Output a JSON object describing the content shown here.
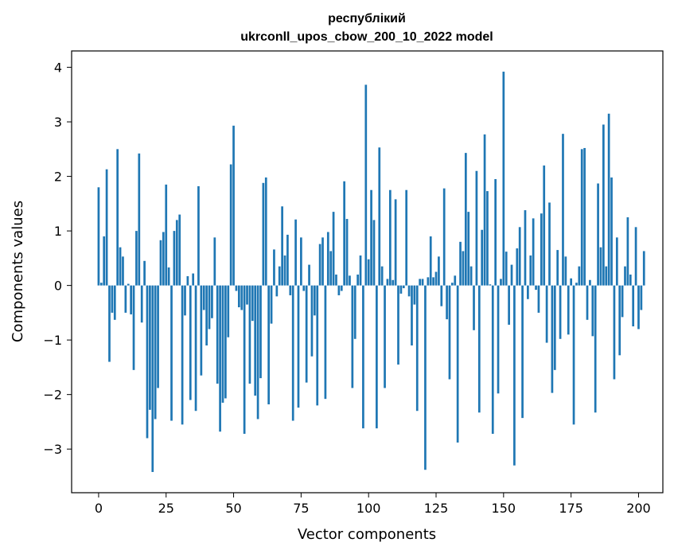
{
  "chart_data": {
    "type": "bar",
    "title_lines": [
      "республікий",
      "ukrconll_upos_cbow_200_10_2022 model"
    ],
    "xlabel": "Vector components",
    "ylabel": "Components values",
    "xlim": [
      -10,
      209
    ],
    "ylim": [
      -3.8,
      4.3
    ],
    "xticks": [
      0,
      25,
      50,
      75,
      100,
      125,
      150,
      175,
      200
    ],
    "yticks": [
      -3,
      -2,
      -1,
      0,
      1,
      2,
      3,
      4
    ],
    "grid": false,
    "bar_color": "#1f77b4",
    "values": [
      1.8,
      0.05,
      0.9,
      2.13,
      -1.4,
      -0.5,
      -0.63,
      2.5,
      0.7,
      0.53,
      -0.5,
      0.03,
      -0.53,
      -1.55,
      1.0,
      2.42,
      -0.68,
      0.45,
      -2.8,
      -2.28,
      -3.42,
      -2.45,
      -1.88,
      0.83,
      0.98,
      1.85,
      0.33,
      -2.48,
      1.0,
      1.2,
      1.3,
      -2.55,
      -0.55,
      0.17,
      -2.1,
      0.22,
      -2.3,
      1.82,
      -1.65,
      -0.45,
      -1.1,
      -0.8,
      -0.6,
      0.88,
      -1.8,
      -2.68,
      -2.15,
      -2.07,
      -0.95,
      2.22,
      2.93,
      -0.1,
      -0.4,
      -0.45,
      -2.72,
      -0.35,
      -1.8,
      -0.65,
      -2.02,
      -2.45,
      -1.7,
      1.88,
      1.98,
      -2.18,
      -0.7,
      0.66,
      -0.2,
      0.35,
      1.45,
      0.55,
      0.93,
      -0.18,
      -2.48,
      1.21,
      -2.24,
      0.88,
      -0.1,
      -1.78,
      0.38,
      -1.3,
      -0.55,
      -2.2,
      0.76,
      0.88,
      -2.08,
      0.98,
      0.63,
      1.35,
      0.2,
      -0.18,
      -0.1,
      1.91,
      1.22,
      0.18,
      -1.88,
      -0.98,
      0.2,
      0.55,
      -2.62,
      3.68,
      0.48,
      1.75,
      1.2,
      -2.62,
      2.53,
      0.35,
      -1.88,
      0.12,
      1.75,
      0.1,
      1.58,
      -1.45,
      -0.15,
      -0.05,
      1.75,
      -0.2,
      -1.1,
      -0.35,
      -2.3,
      0.12,
      0.12,
      -3.38,
      0.15,
      0.9,
      0.15,
      0.25,
      0.53,
      -0.38,
      1.78,
      -0.62,
      -1.72,
      0.05,
      0.18,
      -2.88,
      0.8,
      0.63,
      2.43,
      1.35,
      0.35,
      -0.82,
      2.1,
      -2.33,
      1.02,
      2.77,
      1.73,
      0.02,
      -2.72,
      1.95,
      -1.98,
      0.12,
      3.92,
      0.62,
      -0.72,
      0.38,
      -3.3,
      0.68,
      1.07,
      -2.43,
      1.38,
      -0.25,
      0.55,
      1.23,
      -0.08,
      -0.5,
      1.32,
      2.2,
      -1.05,
      1.52,
      -1.97,
      -1.55,
      0.65,
      -0.98,
      2.78,
      0.53,
      -0.9,
      0.13,
      -2.55,
      0.05,
      0.35,
      2.5,
      2.52,
      -0.63,
      0.1,
      -0.93,
      -2.33,
      1.87,
      0.7,
      2.95,
      0.35,
      3.15,
      1.98,
      -1.72,
      0.88,
      -1.28,
      -0.58,
      0.35,
      1.25,
      0.2,
      -0.75,
      1.07,
      -0.8,
      -0.45,
      0.63
    ]
  }
}
